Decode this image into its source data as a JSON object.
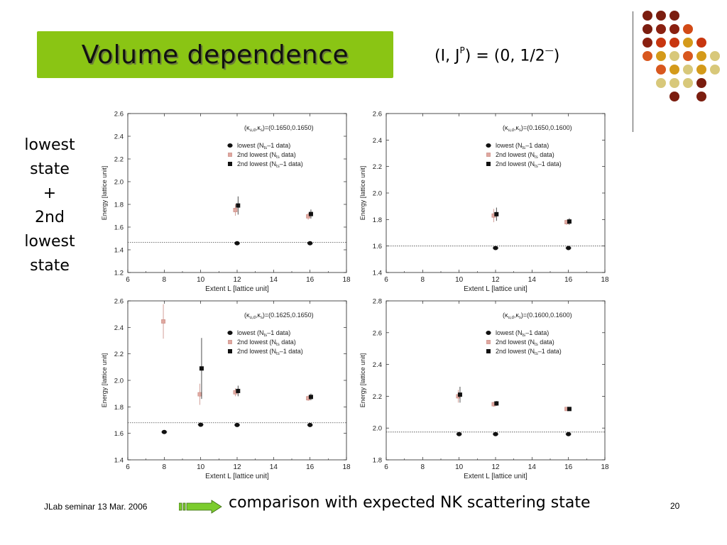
{
  "slide": {
    "title": "Volume dependence",
    "formula_prefix": "(I, J",
    "formula_sup": "P",
    "formula_suffix": ") = (0, 1/2",
    "formula_sup2": "—",
    "formula_end": ")",
    "side_label": [
      "lowest",
      "state",
      "+",
      "2nd",
      "lowest",
      "state"
    ],
    "footer": "JLab seminar 13 Mar. 2006",
    "comparison": "comparison with expected NK scattering state",
    "page_number": "20",
    "colors": {
      "title_bg": "#8ac514",
      "arrow": "#7ccc2e",
      "dots": [
        "#7b1d0f",
        "#7b1d0f",
        "#7b1d0f",
        "#7b1d0f",
        "#8a2010",
        "#8a2010",
        "#d24a16",
        "#8a2010",
        "#c8360f",
        "#c8360f",
        "#d49a1a",
        "#c8360f",
        "#d8571e",
        "#d49a1a",
        "#d8c87a",
        "#d8571e",
        "#d49a1a",
        "#d8c87a",
        "#d8571e",
        "#d49a1a",
        "#d8c87a",
        "#d49a1a",
        "#d8c87a",
        "#d8c87a",
        "#d8c87a",
        "#d8c87a"
      ]
    }
  },
  "chart_data": [
    {
      "type": "scatter",
      "kappa_label": "(κ",
      "kappa_sub1": "u,d",
      "kappa_mid": ",κ",
      "kappa_sub2": "s",
      "kappa_value": ")=(0.1650,0.1650)",
      "xlabel": "Extent  L [lattice unit]",
      "ylabel": "Energy [lattice unit]",
      "xlim": [
        6,
        18
      ],
      "ylim": [
        1.2,
        2.6
      ],
      "xticks": [
        6,
        8,
        10,
        12,
        14,
        16,
        18
      ],
      "yticks": [
        1.2,
        1.4,
        1.6,
        1.8,
        2.0,
        2.2,
        2.4,
        2.6
      ],
      "threshold": 1.465,
      "legend": [
        {
          "marker": "circle",
          "text": "lowest (N",
          "sub": "ts",
          "end": "–1 data)"
        },
        {
          "marker": "x",
          "text": "2nd lowest (N",
          "sub": "ts",
          "end": " data)"
        },
        {
          "marker": "square",
          "text": "2nd lowest (N",
          "sub": "ts",
          "end": "–1 data)"
        }
      ],
      "series": [
        {
          "name": "lowest (Nts–1 data)",
          "marker": "circle",
          "points": [
            {
              "x": 12,
              "y": 1.458,
              "err": 0.008
            },
            {
              "x": 16,
              "y": 1.458,
              "err": 0.008
            }
          ]
        },
        {
          "name": "2nd lowest (Nts data)",
          "marker": "x",
          "points": [
            {
              "x": 11.9,
              "y": 1.75,
              "err": 0.05
            },
            {
              "x": 15.9,
              "y": 1.695,
              "err": 0.03
            }
          ]
        },
        {
          "name": "2nd lowest (Nts–1 data)",
          "marker": "square",
          "points": [
            {
              "x": 12.05,
              "y": 1.79,
              "err": 0.08
            },
            {
              "x": 16.05,
              "y": 1.715,
              "err": 0.04
            }
          ]
        }
      ]
    },
    {
      "type": "scatter",
      "kappa_label": "(κ",
      "kappa_sub1": "u,d",
      "kappa_mid": ",κ",
      "kappa_sub2": "s",
      "kappa_value": ")=(0.1650,0.1600)",
      "xlabel": "Extent  L [lattice unit]",
      "ylabel": "Energy [lattice unit]",
      "xlim": [
        6,
        18
      ],
      "ylim": [
        1.4,
        2.6
      ],
      "xticks": [
        6,
        8,
        10,
        12,
        14,
        16,
        18
      ],
      "yticks": [
        1.4,
        1.6,
        1.8,
        2.0,
        2.2,
        2.4,
        2.6
      ],
      "threshold": 1.6,
      "legend": [
        {
          "marker": "circle",
          "text": "lowest (N",
          "sub": "ts",
          "end": "–1 data)"
        },
        {
          "marker": "x",
          "text": "2nd lowest (N",
          "sub": "ts",
          "end": " data)"
        },
        {
          "marker": "square",
          "text": "2nd lowest (N",
          "sub": "ts",
          "end": "–1 data)"
        }
      ],
      "series": [
        {
          "name": "lowest (Nts–1 data)",
          "marker": "circle",
          "points": [
            {
              "x": 12,
              "y": 1.585,
              "err": 0.006
            },
            {
              "x": 16,
              "y": 1.585,
              "err": 0.006
            }
          ]
        },
        {
          "name": "2nd lowest (Nts data)",
          "marker": "x",
          "points": [
            {
              "x": 11.9,
              "y": 1.83,
              "err": 0.05
            },
            {
              "x": 15.9,
              "y": 1.78,
              "err": 0.02
            }
          ]
        },
        {
          "name": "2nd lowest (Nts–1 data)",
          "marker": "square",
          "points": [
            {
              "x": 12.05,
              "y": 1.84,
              "err": 0.05
            },
            {
              "x": 16.05,
              "y": 1.785,
              "err": 0.025
            }
          ]
        }
      ]
    },
    {
      "type": "scatter",
      "kappa_label": "(κ",
      "kappa_sub1": "u,d",
      "kappa_mid": ",κ",
      "kappa_sub2": "s",
      "kappa_value": ")=(0.1625,0.1650)",
      "xlabel": "Extent  L [lattice unit]",
      "ylabel": "Energy [lattice unit]",
      "xlim": [
        6,
        18
      ],
      "ylim": [
        1.4,
        2.6
      ],
      "xticks": [
        6,
        8,
        10,
        12,
        14,
        16,
        18
      ],
      "yticks": [
        1.4,
        1.6,
        1.8,
        2.0,
        2.2,
        2.4,
        2.6
      ],
      "threshold": 1.68,
      "legend": [
        {
          "marker": "circle",
          "text": "lowest (N",
          "sub": "ts",
          "end": "–1 data)"
        },
        {
          "marker": "x",
          "text": "2nd lowest (N",
          "sub": "ts",
          "end": " data)"
        },
        {
          "marker": "square",
          "text": "2nd lowest (N",
          "sub": "ts",
          "end": "–1 data)"
        }
      ],
      "series": [
        {
          "name": "lowest (Nts–1 data)",
          "marker": "circle",
          "points": [
            {
              "x": 8,
              "y": 1.61,
              "err": 0.01
            },
            {
              "x": 10,
              "y": 1.665,
              "err": 0.008
            },
            {
              "x": 12,
              "y": 1.663,
              "err": 0.008
            },
            {
              "x": 16,
              "y": 1.663,
              "err": 0.008
            }
          ]
        },
        {
          "name": "2nd lowest (Nts data)",
          "marker": "x",
          "points": [
            {
              "x": 7.95,
              "y": 2.445,
              "err": 0.13
            },
            {
              "x": 9.95,
              "y": 1.895,
              "err": 0.08
            },
            {
              "x": 11.9,
              "y": 1.91,
              "err": 0.03
            },
            {
              "x": 15.9,
              "y": 1.865,
              "err": 0.02
            }
          ]
        },
        {
          "name": "2nd lowest (Nts–1 data)",
          "marker": "square",
          "points": [
            {
              "x": 10.05,
              "y": 2.09,
              "err": 0.23
            },
            {
              "x": 12.05,
              "y": 1.92,
              "err": 0.04
            },
            {
              "x": 16.05,
              "y": 1.875,
              "err": 0.025
            }
          ]
        }
      ]
    },
    {
      "type": "scatter",
      "kappa_label": "(κ",
      "kappa_sub1": "u,d",
      "kappa_mid": ",κ",
      "kappa_sub2": "s",
      "kappa_value": ")=(0.1600,0.1600)",
      "xlabel": "Extent  L [lattice unit]",
      "ylabel": "Energy [lattice unit]",
      "xlim": [
        6,
        18
      ],
      "ylim": [
        1.8,
        2.8
      ],
      "xticks": [
        6,
        8,
        10,
        12,
        14,
        16,
        18
      ],
      "yticks": [
        1.8,
        2.0,
        2.2,
        2.4,
        2.6,
        2.8
      ],
      "threshold": 1.975,
      "legend": [
        {
          "marker": "circle",
          "text": "lowest (N",
          "sub": "ts",
          "end": "–1 data)"
        },
        {
          "marker": "x",
          "text": "2nd lowest (N",
          "sub": "ts",
          "end": " data)"
        },
        {
          "marker": "square",
          "text": "2nd lowest (N",
          "sub": "ts",
          "end": "–1 data)"
        }
      ],
      "series": [
        {
          "name": "lowest (Nts–1 data)",
          "marker": "circle",
          "points": [
            {
              "x": 10,
              "y": 1.962,
              "err": 0.006
            },
            {
              "x": 12,
              "y": 1.962,
              "err": 0.006
            },
            {
              "x": 16,
              "y": 1.962,
              "err": 0.006
            }
          ]
        },
        {
          "name": "2nd lowest (Nts data)",
          "marker": "x",
          "points": [
            {
              "x": 9.95,
              "y": 2.2,
              "err": 0.04
            },
            {
              "x": 11.9,
              "y": 2.15,
              "err": 0.015
            },
            {
              "x": 15.9,
              "y": 2.12,
              "err": 0.01
            }
          ]
        },
        {
          "name": "2nd lowest (Nts–1 data)",
          "marker": "square",
          "points": [
            {
              "x": 10.05,
              "y": 2.21,
              "err": 0.05
            },
            {
              "x": 12.05,
              "y": 2.155,
              "err": 0.015
            },
            {
              "x": 16.05,
              "y": 2.12,
              "err": 0.012
            }
          ]
        }
      ]
    }
  ]
}
